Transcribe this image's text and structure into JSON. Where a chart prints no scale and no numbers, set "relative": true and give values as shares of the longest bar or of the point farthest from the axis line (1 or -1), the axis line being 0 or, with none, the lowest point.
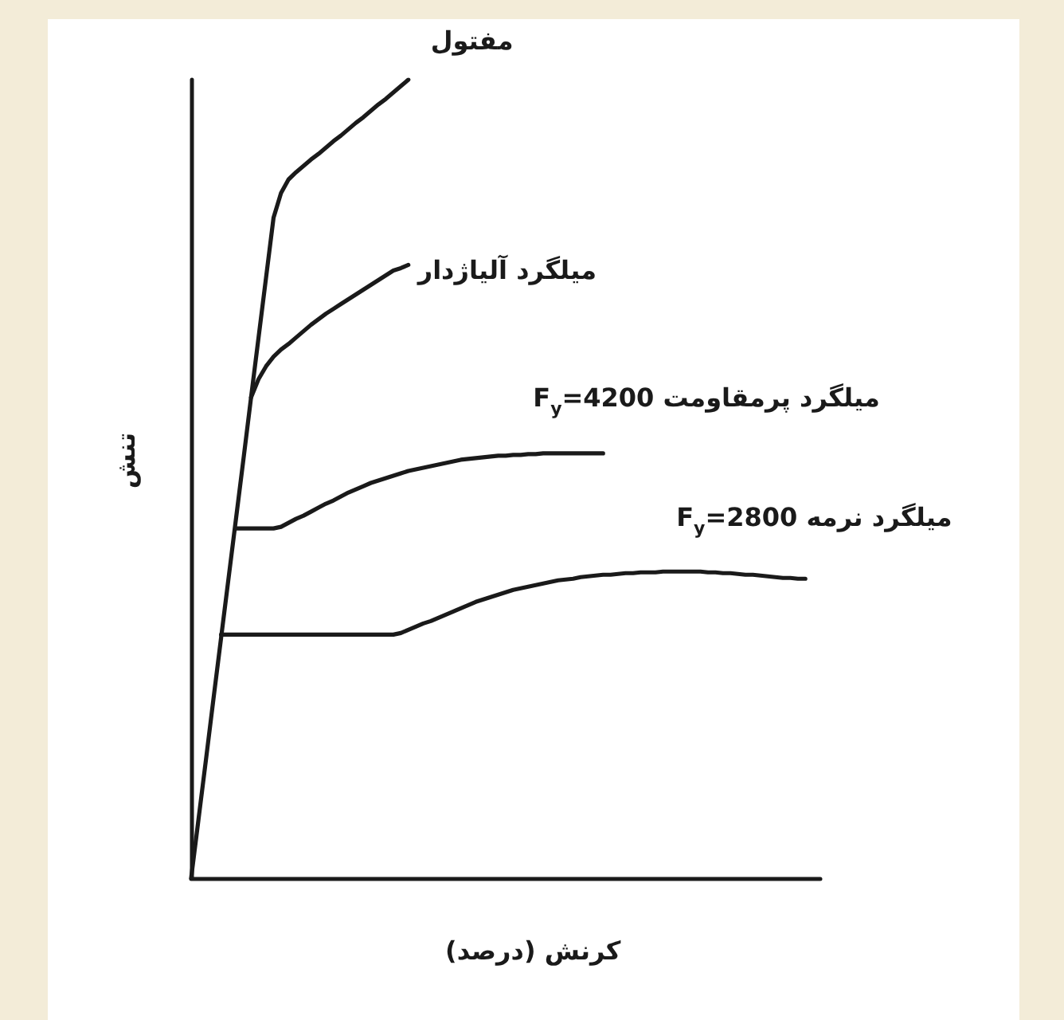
{
  "chart_data": {
    "type": "line",
    "xlabel": "کرنش (درصد)",
    "ylabel": "تنش",
    "relative": true,
    "marker": "none",
    "categories": [
      null,
      null,
      null,
      null,
      null,
      null,
      null,
      null,
      null,
      null,
      null,
      null,
      null,
      null,
      null,
      null,
      null,
      null,
      null,
      null,
      null,
      null,
      null,
      null,
      null,
      null,
      null,
      null,
      null,
      null,
      null,
      null,
      null,
      null,
      null,
      null,
      null,
      null,
      null,
      null,
      null,
      null,
      null,
      null,
      null,
      null,
      null,
      null,
      null,
      null,
      null,
      null,
      null,
      null,
      null,
      null,
      null,
      null,
      null,
      null,
      null,
      null,
      null,
      null,
      null,
      null,
      null,
      null,
      null,
      null,
      null,
      null,
      null,
      null,
      null,
      null,
      null,
      null,
      null,
      null,
      null,
      null,
      null,
      null,
      null
    ],
    "series": [
      {
        "name": "مفتول",
        "color": "#1a1a1a",
        "values": [
          0,
          0.075,
          0.15,
          0.226,
          0.301,
          0.376,
          0.451,
          0.526,
          0.602,
          0.677,
          0.752,
          0.827,
          0.858,
          0.875,
          0.884,
          0.892,
          0.9,
          0.907,
          0.915,
          0.923,
          0.93,
          0.938,
          0.946,
          0.953,
          0.961,
          0.969,
          0.976,
          0.984,
          0.992,
          1,
          null,
          null,
          null,
          null,
          null,
          null,
          null,
          null,
          null,
          null,
          null,
          null,
          null,
          null,
          null,
          null,
          null,
          null,
          null,
          null,
          null,
          null,
          null,
          null,
          null,
          null,
          null,
          null,
          null,
          null,
          null,
          null,
          null,
          null,
          null,
          null,
          null,
          null,
          null,
          null,
          null,
          null,
          null,
          null,
          null,
          null,
          null,
          null,
          null,
          null,
          null,
          null,
          null,
          null,
          null
        ]
      },
      {
        "name": "میلگرد آلیاژدار",
        "color": "#1a1a1a",
        "values": [
          null,
          null,
          null,
          null,
          null,
          null,
          null,
          null,
          0.602,
          0.625,
          0.641,
          0.653,
          0.662,
          0.669,
          0.677,
          0.685,
          0.693,
          0.7,
          0.707,
          0.713,
          0.719,
          0.725,
          0.731,
          0.737,
          0.743,
          0.749,
          0.755,
          0.761,
          0.764,
          0.768,
          null,
          null,
          null,
          null,
          null,
          null,
          null,
          null,
          null,
          null,
          null,
          null,
          null,
          null,
          null,
          null,
          null,
          null,
          null,
          null,
          null,
          null,
          null,
          null,
          null,
          null,
          null,
          null,
          null,
          null,
          null,
          null,
          null,
          null,
          null,
          null,
          null,
          null,
          null,
          null,
          null,
          null,
          null,
          null,
          null,
          null,
          null,
          null,
          null,
          null,
          null,
          null,
          null,
          null,
          null
        ]
      },
      {
        "name": "میلگرد پرمقاومت F$_{y}$=4200",
        "color": "#1a1a1a",
        "values": [
          null,
          null,
          null,
          null,
          null,
          null,
          0.438,
          0.438,
          0.438,
          0.438,
          0.438,
          0.438,
          0.44,
          0.445,
          0.45,
          0.454,
          0.459,
          0.464,
          0.469,
          0.473,
          0.478,
          0.483,
          0.487,
          0.491,
          0.495,
          0.498,
          0.501,
          0.504,
          0.507,
          0.51,
          0.512,
          0.514,
          0.516,
          0.518,
          0.52,
          0.522,
          0.524,
          0.525,
          0.526,
          0.527,
          0.528,
          0.529,
          0.529,
          0.53,
          0.53,
          0.531,
          0.531,
          0.532,
          0.532,
          0.532,
          0.532,
          0.532,
          0.532,
          0.532,
          0.532,
          0.532,
          null,
          null,
          null,
          null,
          null,
          null,
          null,
          null,
          null,
          null,
          null,
          null,
          null,
          null,
          null,
          null,
          null,
          null,
          null,
          null,
          null,
          null,
          null,
          null,
          null,
          null,
          null,
          null,
          null
        ]
      },
      {
        "name": "میلگرد نرمه F$_{y}$=2800",
        "color": "#1a1a1a",
        "values": [
          null,
          null,
          null,
          null,
          0.305,
          0.305,
          0.305,
          0.305,
          0.305,
          0.305,
          0.305,
          0.305,
          0.305,
          0.305,
          0.305,
          0.305,
          0.305,
          0.305,
          0.305,
          0.305,
          0.305,
          0.305,
          0.305,
          0.305,
          0.305,
          0.305,
          0.305,
          0.305,
          0.307,
          0.311,
          0.315,
          0.319,
          0.322,
          0.326,
          0.33,
          0.334,
          0.338,
          0.342,
          0.346,
          0.349,
          0.352,
          0.355,
          0.358,
          0.361,
          0.363,
          0.365,
          0.367,
          0.369,
          0.371,
          0.373,
          0.374,
          0.375,
          0.377,
          0.378,
          0.379,
          0.38,
          0.38,
          0.381,
          0.382,
          0.382,
          0.383,
          0.383,
          0.383,
          0.384,
          0.384,
          0.384,
          0.384,
          0.384,
          0.384,
          0.383,
          0.383,
          0.382,
          0.382,
          0.381,
          0.38,
          0.38,
          0.379,
          0.378,
          0.377,
          0.376,
          0.376,
          0.375,
          0.375,
          null,
          null
        ]
      }
    ]
  }
}
